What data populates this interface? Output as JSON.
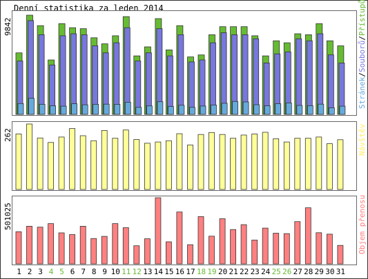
{
  "chart_data": [
    {
      "type": "bar",
      "title": "Denní statistika za leden 2014",
      "ylabel": "Stránek/Souborů/Přístupů",
      "ymax_label": "9842",
      "ylim": [
        0,
        9842
      ],
      "categories": [
        "1",
        "2",
        "3",
        "4",
        "5",
        "6",
        "7",
        "8",
        "9",
        "10",
        "11",
        "12",
        "13",
        "14",
        "15",
        "16",
        "17",
        "18",
        "19",
        "20",
        "21",
        "22",
        "23",
        "24",
        "25",
        "26",
        "27",
        "28",
        "29",
        "30",
        "31"
      ],
      "series": [
        {
          "name": "Přístupů",
          "color": "#66bb33",
          "values": [
            6100,
            9842,
            8800,
            5400,
            9000,
            8600,
            8500,
            7600,
            7000,
            7800,
            9700,
            5800,
            6700,
            9500,
            6400,
            8800,
            5700,
            5900,
            7900,
            8700,
            8700,
            8700,
            7800,
            5800,
            7300,
            7100,
            8000,
            7900,
            9000,
            7300,
            6800
          ]
        },
        {
          "name": "Souborů",
          "color": "#7777dd",
          "values": [
            5300,
            9300,
            7900,
            4900,
            7800,
            8000,
            7900,
            6800,
            6100,
            7100,
            8600,
            5300,
            6100,
            8500,
            5800,
            7900,
            5200,
            5400,
            7100,
            8100,
            7900,
            7900,
            7500,
            5100,
            6000,
            6200,
            7500,
            7300,
            8000,
            5900,
            5100
          ]
        },
        {
          "name": "Stránek",
          "color": "#66aadd",
          "values": [
            1070,
            1590,
            1000,
            850,
            810,
            1050,
            950,
            1000,
            1010,
            990,
            1200,
            700,
            840,
            1250,
            780,
            900,
            700,
            830,
            930,
            1100,
            1280,
            1230,
            960,
            850,
            1050,
            1130,
            890,
            860,
            1010,
            650,
            810
          ]
        }
      ]
    },
    {
      "type": "bar",
      "ylabel": "Návštěv",
      "ymax_label": "262",
      "ylim": [
        0,
        262
      ],
      "categories": [
        "1",
        "2",
        "3",
        "4",
        "5",
        "6",
        "7",
        "8",
        "9",
        "10",
        "11",
        "12",
        "13",
        "14",
        "15",
        "16",
        "17",
        "18",
        "19",
        "20",
        "21",
        "22",
        "23",
        "24",
        "25",
        "26",
        "27",
        "28",
        "29",
        "30",
        "31"
      ],
      "series": [
        {
          "name": "Návštěv",
          "color": "#ffff99",
          "values": [
            222,
            262,
            206,
            188,
            210,
            244,
            215,
            195,
            236,
            205,
            238,
            200,
            185,
            190,
            195,
            223,
            178,
            220,
            228,
            220,
            205,
            218,
            222,
            229,
            203,
            190,
            205,
            205,
            210,
            183,
            199
          ]
        }
      ]
    },
    {
      "type": "bar",
      "ylabel": "Objem přenosu",
      "ymax_label": "501025",
      "ylim": [
        0,
        501025
      ],
      "categories": [
        "1",
        "2",
        "3",
        "4",
        "5",
        "6",
        "7",
        "8",
        "9",
        "10",
        "11",
        "12",
        "13",
        "14",
        "15",
        "16",
        "17",
        "18",
        "19",
        "20",
        "21",
        "22",
        "23",
        "24",
        "25",
        "26",
        "27",
        "28",
        "29",
        "30",
        "31"
      ],
      "series": [
        {
          "name": "Objem přenosu",
          "color": "#ff8080",
          "values": [
            243000,
            285000,
            278000,
            305000,
            235000,
            222000,
            285000,
            192000,
            208000,
            305000,
            274000,
            137000,
            190000,
            501025,
            167000,
            393000,
            145000,
            358000,
            210000,
            342000,
            260000,
            297000,
            180000,
            271000,
            232000,
            229000,
            320000,
            425000,
            236000,
            225000,
            140000
          ]
        }
      ]
    }
  ],
  "x_axis": {
    "labels": [
      "1",
      "2",
      "3",
      "4",
      "5",
      "6",
      "7",
      "8",
      "9",
      "10",
      "11",
      "12",
      "13",
      "14",
      "15",
      "16",
      "17",
      "18",
      "19",
      "20",
      "21",
      "22",
      "23",
      "24",
      "25",
      "26",
      "27",
      "28",
      "29",
      "30",
      "31"
    ],
    "weekend": [
      false,
      false,
      false,
      true,
      true,
      false,
      false,
      false,
      false,
      false,
      true,
      true,
      false,
      false,
      false,
      false,
      false,
      true,
      true,
      false,
      false,
      false,
      false,
      false,
      true,
      true,
      false,
      false,
      false,
      false,
      false
    ],
    "weekday_color": "#000000",
    "weekend_color": "#66bb33"
  }
}
